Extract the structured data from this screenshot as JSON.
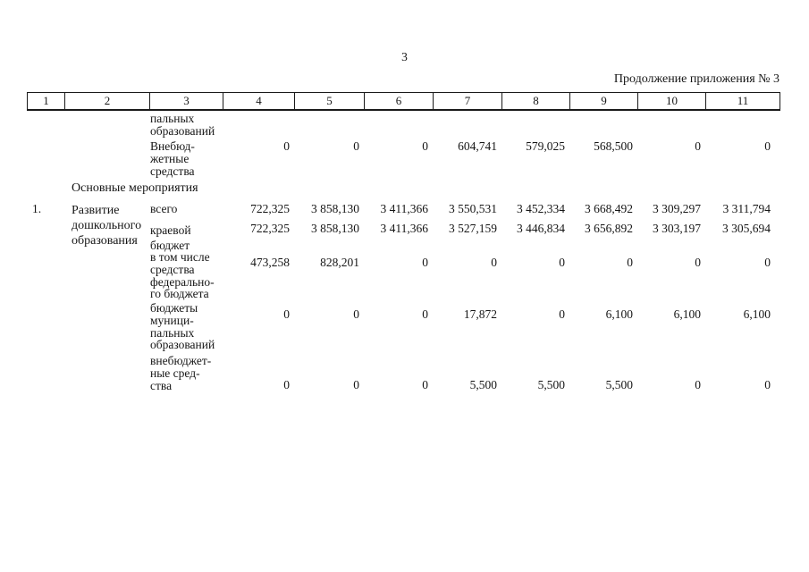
{
  "page": {
    "number": "3",
    "continuation_note": "Продолжение приложения № 3"
  },
  "table": {
    "header": [
      "1",
      "2",
      "3",
      "4",
      "5",
      "6",
      "7",
      "8",
      "9",
      "10",
      "11"
    ],
    "carryover_row": {
      "label_lines": [
        "пальных",
        "образований"
      ]
    },
    "extrabudget_row": {
      "label_lines": [
        "Внебюд-",
        "жетные",
        "средства"
      ],
      "values": [
        "0",
        "0",
        "0",
        "604,741",
        "579,025",
        "568,500",
        "0",
        "0"
      ]
    },
    "section_title": "Основные мероприятия",
    "item": {
      "number": "1.",
      "name_lines": [
        "Развитие",
        "дошкольного",
        "образования"
      ],
      "rows": [
        {
          "label_lines": [
            "всего"
          ],
          "values": [
            "722,325",
            "3 858,130",
            "3 411,366",
            "3 550,531",
            "3 452,334",
            "3 668,492",
            "3 309,297",
            "3 311,794"
          ]
        },
        {
          "label_lines": [
            "краевой",
            "бюджет"
          ],
          "values": [
            "722,325",
            "3 858,130",
            "3 411,366",
            "3 527,159",
            "3 446,834",
            "3 656,892",
            "3 303,197",
            "3 305,694"
          ]
        },
        {
          "label_lines": [
            "в том числе",
            "средства",
            "федерально-",
            "го бюджета"
          ],
          "values": [
            "473,258",
            "828,201",
            "0",
            "0",
            "0",
            "0",
            "0",
            "0"
          ]
        },
        {
          "label_lines": [
            "бюджеты",
            "муници-",
            "пальных",
            "образований"
          ],
          "values": [
            "0",
            "0",
            "0",
            "17,872",
            "0",
            "6,100",
            "6,100",
            "6,100"
          ]
        },
        {
          "label_lines": [
            "внебюджет-",
            "ные сред-",
            "ства"
          ],
          "values": [
            "0",
            "0",
            "0",
            "5,500",
            "5,500",
            "5,500",
            "0",
            "0"
          ]
        }
      ]
    }
  }
}
